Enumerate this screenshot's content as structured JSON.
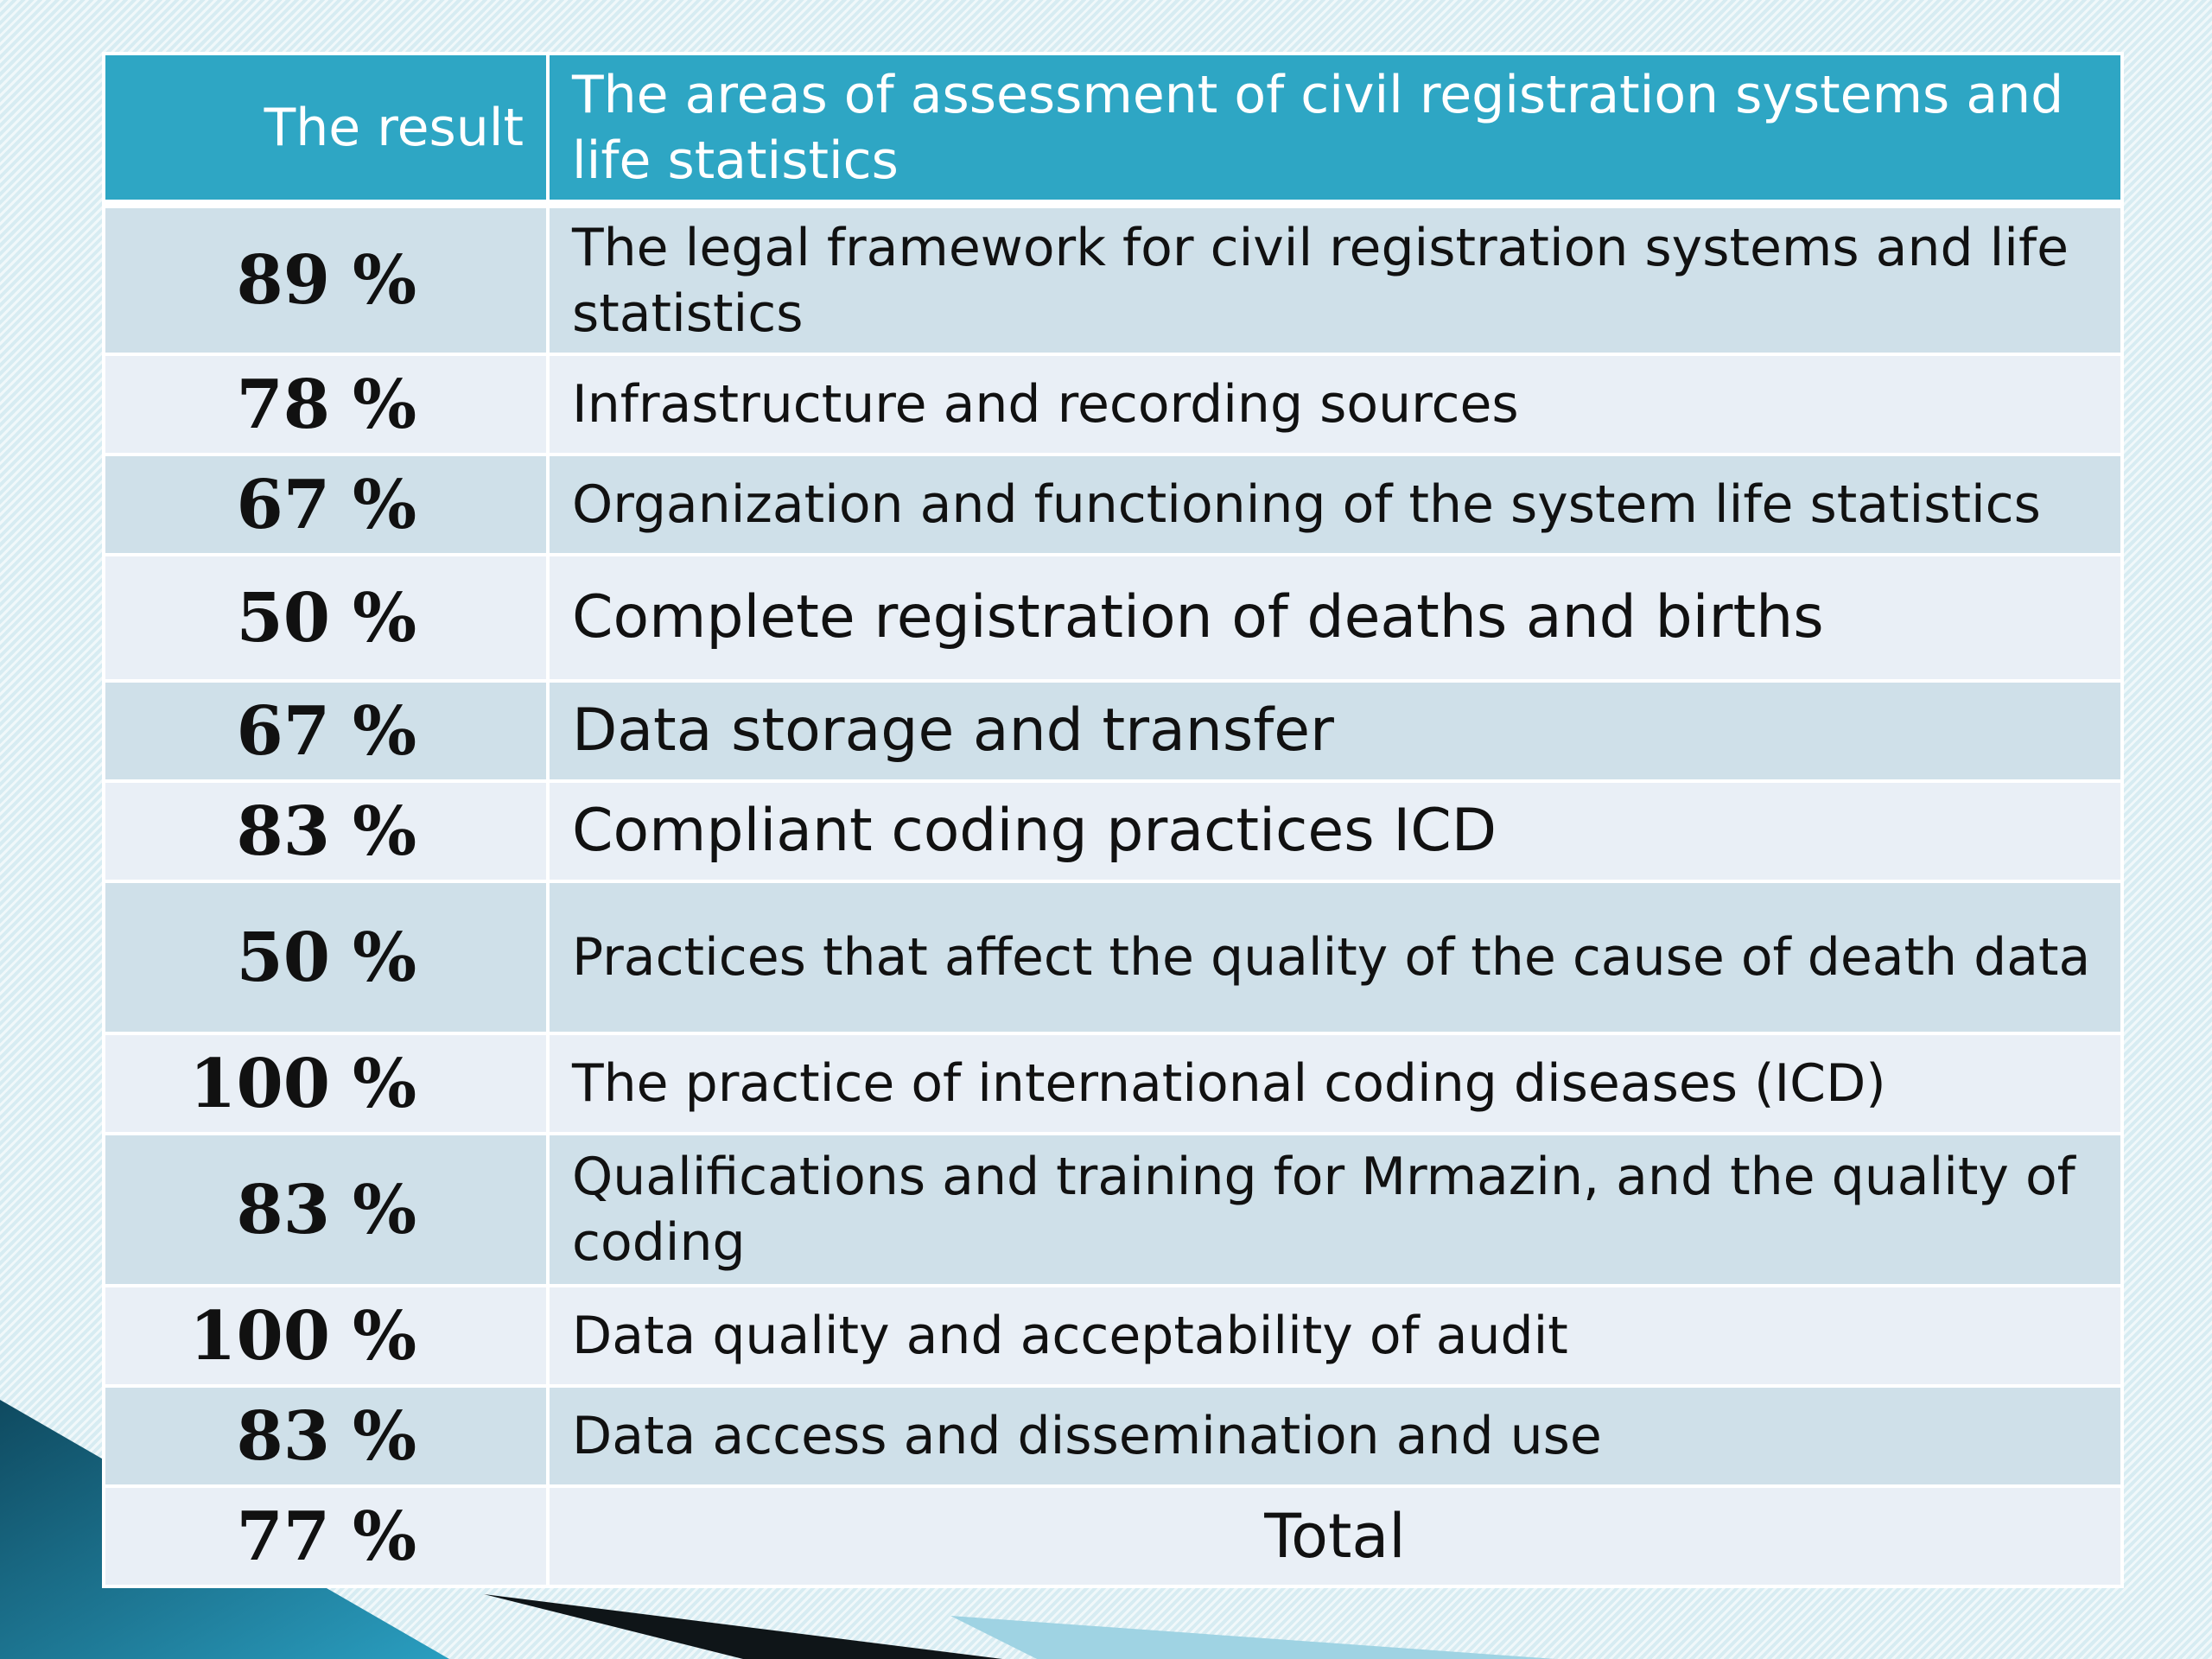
{
  "table": {
    "headers": {
      "result": "The result",
      "area": "The areas of assessment of civil registration systems and life statistics"
    },
    "rows": [
      {
        "value": "89",
        "unit": "%",
        "area": "The legal framework for civil registration systems and life statistics"
      },
      {
        "value": "78",
        "unit": "%",
        "area": "Infrastructure and recording sources"
      },
      {
        "value": "67",
        "unit": "%",
        "area": "Organization and functioning of the system life statistics"
      },
      {
        "value": "50",
        "unit": "%",
        "area": "Complete registration of deaths and births"
      },
      {
        "value": "67",
        "unit": "%",
        "area": "Data storage and transfer"
      },
      {
        "value": "83",
        "unit": "%",
        "area": "Compliant coding practices ICD"
      },
      {
        "value": "50",
        "unit": "%",
        "area": "Practices that affect the quality of the cause of death data"
      },
      {
        "value": "100",
        "unit": "%",
        "area": "The practice of international coding diseases (ICD)"
      },
      {
        "value": "83",
        "unit": "%",
        "area": "Qualifications and training for Mrmazin, and the quality of coding"
      },
      {
        "value": "100",
        "unit": "%",
        "area": "Data quality and acceptability of audit"
      },
      {
        "value": "83",
        "unit": "%",
        "area": "Data access and dissemination and use"
      },
      {
        "value": "77",
        "unit": "%",
        "area": "Total"
      }
    ]
  },
  "colors": {
    "header_bg": "#2ea6c4",
    "row_odd": "#cfe0e9",
    "row_even": "#e9eff6",
    "slide_bg": "#dff0f5",
    "accent_dark": "#0f4a60",
    "accent_teal": "#2191b1"
  }
}
